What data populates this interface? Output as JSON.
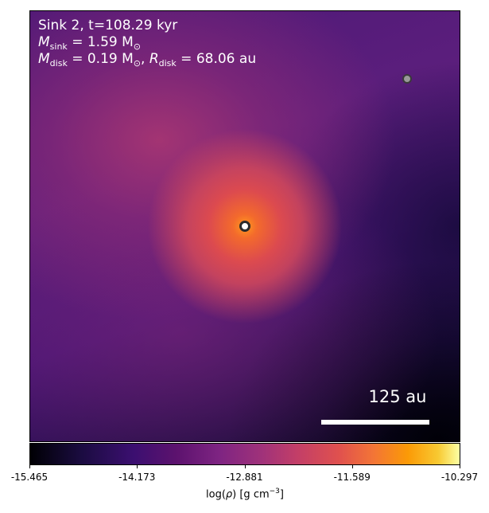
{
  "chart_data": {
    "type": "heatmap",
    "annotations": {
      "line1": "Sink 2, t=108.29 kyr",
      "msink_symbol": "M",
      "msink_sub": "sink",
      "msink_value": " = 1.59 M",
      "msink_unit_sub": "⊙",
      "mdisk_symbol": "M",
      "mdisk_sub": "disk",
      "mdisk_value": " = 0.19 M",
      "mdisk_unit_sub": "⊙",
      "separator": ", ",
      "rdisk_symbol": "R",
      "rdisk_sub": "disk",
      "rdisk_value": " = 68.06 au"
    },
    "scale_bar": {
      "label": "125 au"
    },
    "sinks": [
      {
        "name": "sink-2-primary",
        "x_frac": 0.5,
        "y_frac": 0.5,
        "fill": "#ffffff",
        "edge": "#2b2b2b"
      },
      {
        "name": "sink-secondary",
        "x_frac": 0.878,
        "y_frac": 0.158,
        "fill": "#9a9a9a",
        "edge": "#3a3a3a"
      }
    ],
    "colorbar": {
      "colormap": "inferno",
      "vmin": -15.465,
      "vmax": -10.297,
      "tick_labels": [
        "-15.465",
        "-14.173",
        "-12.881",
        "-11.589",
        "-10.297"
      ],
      "label_prefix": "log(",
      "label_rho": "ρ",
      "label_mid": ") [g cm",
      "label_exp": "−3",
      "label_suffix": "]"
    }
  }
}
